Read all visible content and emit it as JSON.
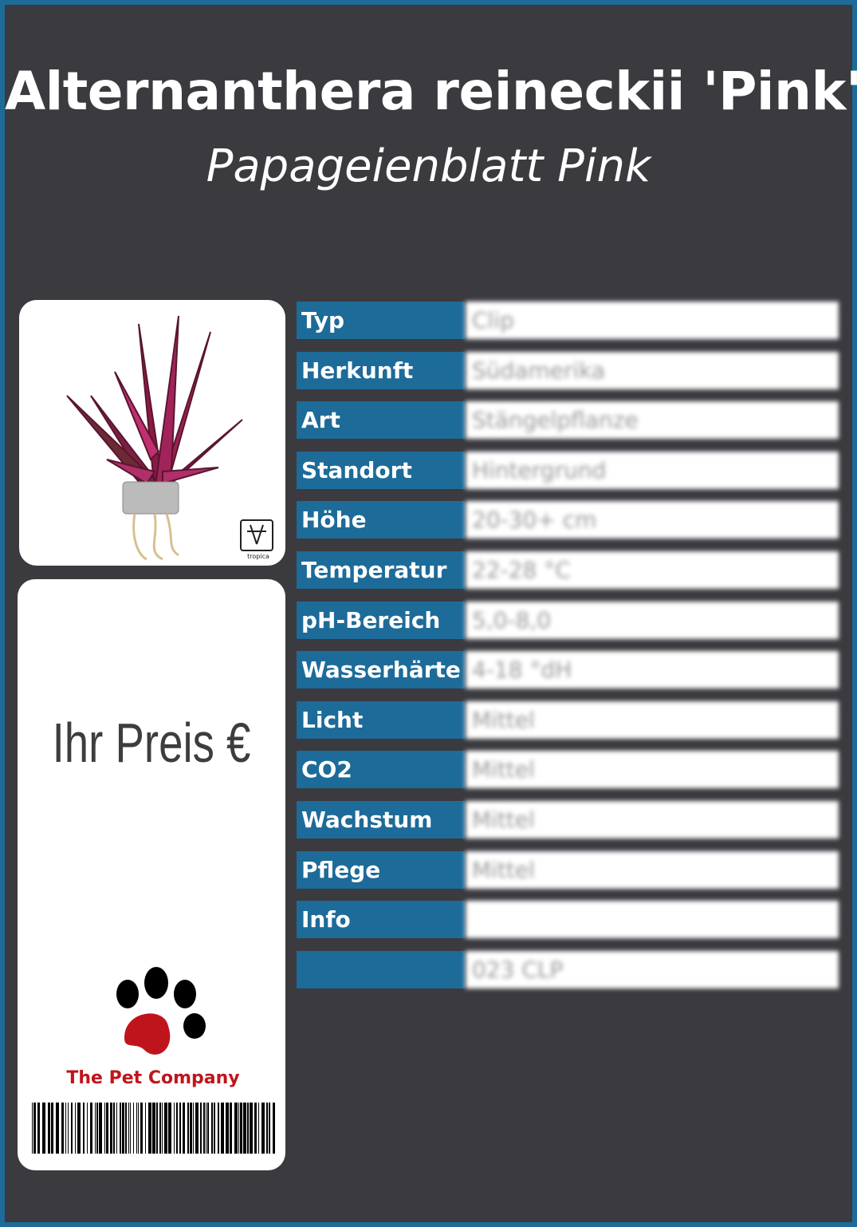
{
  "header": {
    "title": "Alternanthera reineckii 'Pink'",
    "subtitle": "Papageienblatt Pink"
  },
  "image": {
    "logo_text": "tropica"
  },
  "price": {
    "label": "Ihr Preis €"
  },
  "brand": {
    "name": "The Pet Company"
  },
  "table": {
    "rows": [
      [
        "Typ",
        "Clip"
      ],
      [
        "Herkunft",
        "Südamerika"
      ],
      [
        "Art",
        "Stängelpflanze"
      ],
      [
        "Standort",
        "Hintergrund"
      ],
      [
        "Höhe",
        "20-30+ cm"
      ],
      [
        "Temperatur",
        "22-28 °C"
      ],
      [
        "pH-Bereich",
        "5,0-8,0"
      ],
      [
        "Wasserhärte",
        "4-18 °dH"
      ],
      [
        "Licht",
        "Mittel"
      ],
      [
        "CO2",
        "Mittel"
      ],
      [
        "Wachstum",
        "Mittel"
      ],
      [
        "Pflege",
        "Mittel"
      ],
      [
        "Info",
        null
      ],
      [
        null,
        "023 CLP"
      ]
    ]
  }
}
